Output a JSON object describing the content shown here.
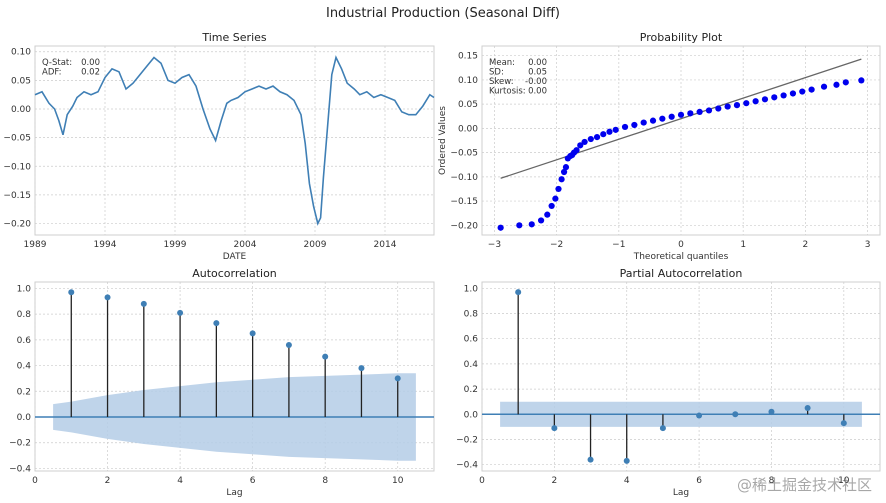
{
  "suptitle": "Industrial Production (Seasonal Diff)",
  "watermark": "@稀土掘金技术社区",
  "colors": {
    "line": "#3f7fb5",
    "dots": "#0000ee",
    "fit": "#666666",
    "band": "#b4cde6",
    "grid": "#cccccc"
  },
  "chart_data": [
    {
      "type": "line",
      "title": "Time Series",
      "xlabel": "DATE",
      "ylabel": "",
      "xlim": [
        1989,
        2017.5
      ],
      "ylim": [
        -0.22,
        0.11
      ],
      "xticks": [
        1989,
        1994,
        1999,
        2004,
        2009,
        2014
      ],
      "xticklabels": [
        "1989",
        "1994",
        "1999",
        "2004",
        "2009",
        "2014"
      ],
      "yticks": [
        -0.2,
        -0.15,
        -0.1,
        -0.05,
        0.0,
        0.05,
        0.1
      ],
      "yticklabels": [
        "−0.20",
        "−0.15",
        "−0.10",
        "−0.05",
        "0.00",
        "0.05",
        "0.10"
      ],
      "stats": [
        {
          "label": "Q-Stat:",
          "value": "0.00"
        },
        {
          "label": "ADF:",
          "value": "0.02"
        }
      ],
      "x": [
        1989.0,
        1989.5,
        1990.0,
        1990.4,
        1990.7,
        1991.0,
        1991.3,
        1991.7,
        1992.0,
        1992.5,
        1993.0,
        1993.5,
        1994.0,
        1994.5,
        1995.0,
        1995.5,
        1996.0,
        1996.5,
        1997.0,
        1997.5,
        1998.0,
        1998.5,
        1999.0,
        1999.5,
        2000.0,
        2000.5,
        2001.0,
        2001.5,
        2001.9,
        2002.3,
        2002.7,
        2003.0,
        2003.5,
        2004.0,
        2004.5,
        2005.0,
        2005.5,
        2006.0,
        2006.5,
        2007.0,
        2007.5,
        2008.0,
        2008.3,
        2008.6,
        2008.9,
        2009.2,
        2009.4,
        2009.6,
        2009.9,
        2010.2,
        2010.5,
        2010.9,
        2011.3,
        2011.8,
        2012.2,
        2012.7,
        2013.2,
        2013.7,
        2014.2,
        2014.7,
        2015.2,
        2015.7,
        2016.2,
        2016.7,
        2017.2,
        2017.5
      ],
      "y": [
        0.025,
        0.03,
        0.01,
        0.0,
        -0.02,
        -0.045,
        -0.01,
        0.005,
        0.02,
        0.03,
        0.025,
        0.03,
        0.055,
        0.07,
        0.065,
        0.035,
        0.045,
        0.06,
        0.075,
        0.09,
        0.08,
        0.05,
        0.045,
        0.055,
        0.06,
        0.04,
        0.0,
        -0.035,
        -0.055,
        -0.02,
        0.01,
        0.015,
        0.02,
        0.03,
        0.035,
        0.04,
        0.035,
        0.04,
        0.03,
        0.025,
        0.015,
        -0.01,
        -0.06,
        -0.13,
        -0.17,
        -0.2,
        -0.19,
        -0.12,
        -0.03,
        0.06,
        0.09,
        0.07,
        0.045,
        0.035,
        0.025,
        0.03,
        0.02,
        0.025,
        0.02,
        0.015,
        -0.005,
        -0.01,
        -0.01,
        0.005,
        0.025,
        0.02
      ]
    },
    {
      "type": "scatter",
      "title": "Probability Plot",
      "xlabel": "Theoretical quantiles",
      "ylabel": "Ordered Values",
      "xlim": [
        -3.2,
        3.2
      ],
      "ylim": [
        -0.22,
        0.17
      ],
      "xticks": [
        -3,
        -2,
        -1,
        0,
        1,
        2,
        3
      ],
      "xticklabels": [
        "−3",
        "−2",
        "−1",
        "0",
        "1",
        "2",
        "3"
      ],
      "yticks": [
        -0.2,
        -0.15,
        -0.1,
        -0.05,
        0.0,
        0.05,
        0.1,
        0.15
      ],
      "yticklabels": [
        "−0.20",
        "−0.15",
        "−0.10",
        "−0.05",
        "0.00",
        "0.05",
        "0.10",
        "0.15"
      ],
      "stats": [
        {
          "label": "Mean:",
          "value": "0.00"
        },
        {
          "label": "SD:",
          "value": "0.05"
        },
        {
          "label": "Skew:",
          "value": "-0.00"
        },
        {
          "label": "Kurtosis:",
          "value": "0.00"
        }
      ],
      "fit_line": {
        "x": [
          -2.9,
          2.9
        ],
        "y": [
          -0.103,
          0.143
        ]
      },
      "x": [
        -2.9,
        -2.6,
        -2.4,
        -2.25,
        -2.15,
        -2.08,
        -2.02,
        -1.97,
        -1.92,
        -1.88,
        -1.85,
        -1.82,
        -1.78,
        -1.75,
        -1.72,
        -1.68,
        -1.62,
        -1.55,
        -1.45,
        -1.35,
        -1.25,
        -1.15,
        -1.05,
        -0.9,
        -0.75,
        -0.6,
        -0.45,
        -0.3,
        -0.15,
        0.0,
        0.15,
        0.3,
        0.45,
        0.6,
        0.75,
        0.9,
        1.05,
        1.2,
        1.35,
        1.5,
        1.65,
        1.8,
        1.95,
        2.1,
        2.3,
        2.5,
        2.65,
        2.9
      ],
      "y": [
        -0.205,
        -0.2,
        -0.198,
        -0.19,
        -0.178,
        -0.16,
        -0.145,
        -0.125,
        -0.105,
        -0.09,
        -0.08,
        -0.062,
        -0.057,
        -0.055,
        -0.05,
        -0.045,
        -0.035,
        -0.028,
        -0.022,
        -0.018,
        -0.012,
        -0.007,
        -0.003,
        0.003,
        0.007,
        0.012,
        0.016,
        0.02,
        0.024,
        0.028,
        0.031,
        0.034,
        0.037,
        0.041,
        0.045,
        0.048,
        0.052,
        0.056,
        0.06,
        0.064,
        0.068,
        0.072,
        0.076,
        0.08,
        0.086,
        0.09,
        0.095,
        0.099
      ]
    },
    {
      "type": "bar",
      "title": "Autocorrelation",
      "xlabel": "Lag",
      "ylabel": "",
      "xlim": [
        0,
        11
      ],
      "ylim": [
        -0.42,
        1.05
      ],
      "xticks": [
        0,
        2,
        4,
        6,
        8,
        10
      ],
      "xticklabels": [
        "0",
        "2",
        "4",
        "6",
        "8",
        "10"
      ],
      "yticks": [
        -0.4,
        -0.2,
        0.0,
        0.2,
        0.4,
        0.6,
        0.8,
        1.0
      ],
      "yticklabels": [
        "−0.4",
        "−0.2",
        "0.0",
        "0.2",
        "0.4",
        "0.6",
        "0.8",
        "1.0"
      ],
      "lags": [
        1,
        2,
        3,
        4,
        5,
        6,
        7,
        8,
        9,
        10
      ],
      "values": [
        0.97,
        0.93,
        0.88,
        0.81,
        0.73,
        0.65,
        0.56,
        0.47,
        0.38,
        0.3
      ],
      "conf_band": {
        "x": [
          0.5,
          1,
          2,
          3,
          4,
          5,
          6,
          7,
          8,
          9,
          10,
          10.5
        ],
        "upper": [
          0.1,
          0.12,
          0.17,
          0.21,
          0.24,
          0.27,
          0.29,
          0.31,
          0.32,
          0.33,
          0.34,
          0.34
        ]
      }
    },
    {
      "type": "bar",
      "title": "Partial Autocorrelation",
      "xlabel": "Lag",
      "ylabel": "",
      "xlim": [
        0,
        11
      ],
      "ylim": [
        -0.45,
        1.05
      ],
      "xticks": [
        0,
        2,
        4,
        6,
        8,
        10
      ],
      "xticklabels": [
        "0",
        "2",
        "4",
        "6",
        "8",
        "10"
      ],
      "yticks": [
        -0.4,
        -0.2,
        0.0,
        0.2,
        0.4,
        0.6,
        0.8,
        1.0
      ],
      "yticklabels": [
        "−0.4",
        "−0.2",
        "0.0",
        "0.2",
        "0.4",
        "0.6",
        "0.8",
        "1.0"
      ],
      "lags": [
        1,
        2,
        3,
        4,
        5,
        6,
        7,
        8,
        9,
        10
      ],
      "values": [
        0.97,
        -0.11,
        -0.36,
        -0.37,
        -0.11,
        -0.01,
        0.0,
        0.02,
        0.05,
        -0.07
      ],
      "conf_band": {
        "x": [
          0.5,
          10.5
        ],
        "upper": [
          0.1,
          0.1
        ]
      }
    }
  ]
}
